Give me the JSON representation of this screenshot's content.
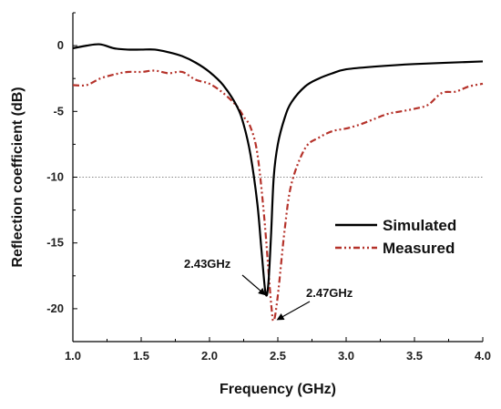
{
  "chart_data": {
    "type": "line",
    "xlabel": "Frequency (GHz)",
    "ylabel": "Reflection coefficient (dB)",
    "xlim": [
      1.0,
      4.0
    ],
    "ylim": [
      -22.5,
      2.5
    ],
    "xticks": [
      "1.0",
      "1.5",
      "2.0",
      "2.5",
      "3.0",
      "3.5",
      "4.0"
    ],
    "yticks": [
      "0",
      "-5",
      "-10",
      "-15",
      "-20"
    ],
    "grid": false,
    "reference_line_y": -10,
    "legend_position": "center-right",
    "series": [
      {
        "name": "Simulated",
        "color": "#000000",
        "style": "solid",
        "x": [
          1.0,
          1.1,
          1.2,
          1.3,
          1.4,
          1.5,
          1.6,
          1.7,
          1.8,
          1.9,
          2.0,
          2.1,
          2.2,
          2.25,
          2.3,
          2.35,
          2.38,
          2.41,
          2.43,
          2.45,
          2.47,
          2.5,
          2.55,
          2.6,
          2.7,
          2.8,
          2.9,
          3.0,
          3.2,
          3.5,
          4.0
        ],
        "y": [
          -0.2,
          0.0,
          0.1,
          -0.2,
          -0.3,
          -0.3,
          -0.3,
          -0.5,
          -0.8,
          -1.3,
          -2.0,
          -3.0,
          -4.6,
          -6.0,
          -8.3,
          -12.0,
          -15.5,
          -18.8,
          -18.2,
          -14.5,
          -10.0,
          -7.5,
          -5.5,
          -4.3,
          -3.1,
          -2.5,
          -2.1,
          -1.8,
          -1.6,
          -1.4,
          -1.2
        ]
      },
      {
        "name": "Measured",
        "color": "#b5322a",
        "style": "dash-dot-dot",
        "x": [
          1.0,
          1.1,
          1.2,
          1.3,
          1.4,
          1.5,
          1.6,
          1.7,
          1.8,
          1.9,
          2.0,
          2.1,
          2.2,
          2.25,
          2.3,
          2.35,
          2.4,
          2.45,
          2.47,
          2.5,
          2.55,
          2.6,
          2.7,
          2.8,
          2.9,
          3.0,
          3.1,
          3.2,
          3.3,
          3.4,
          3.5,
          3.6,
          3.7,
          3.8,
          3.9,
          4.0
        ],
        "y": [
          -3.0,
          -3.0,
          -2.5,
          -2.2,
          -2.0,
          -2.0,
          -1.9,
          -2.1,
          -2.0,
          -2.6,
          -2.9,
          -3.6,
          -4.6,
          -5.4,
          -6.2,
          -8.2,
          -13.0,
          -19.5,
          -20.9,
          -19.0,
          -14.0,
          -10.5,
          -7.8,
          -7.0,
          -6.5,
          -6.3,
          -6.0,
          -5.6,
          -5.2,
          -5.0,
          -4.8,
          -4.5,
          -3.6,
          -3.5,
          -3.1,
          -2.9
        ]
      }
    ],
    "annotations": [
      {
        "text": "2.43GHz",
        "x": 2.42,
        "y": -18.8
      },
      {
        "text": "2.47GHz",
        "x": 2.47,
        "y": -20.9
      }
    ]
  }
}
